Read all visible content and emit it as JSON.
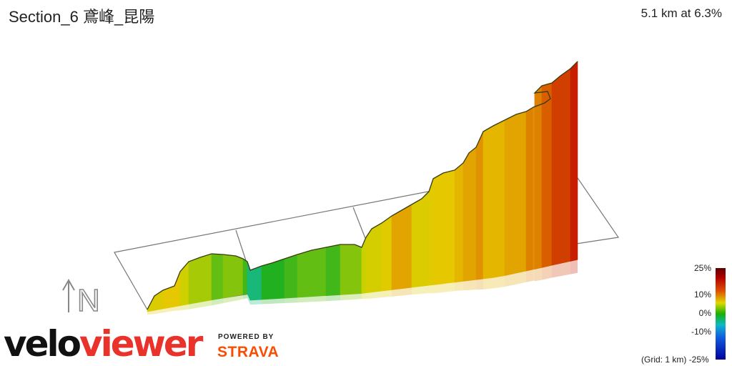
{
  "header": {
    "title": "Section_6 鳶峰_昆陽",
    "summary": "5.1 km at 6.3%"
  },
  "compass": {
    "label": "N"
  },
  "legend": {
    "ticks": [
      "25%",
      "10%",
      "0%",
      "-10%",
      "-25%"
    ],
    "colors": [
      "#8b0000",
      "#d03000",
      "#e8e000",
      "#20b020",
      "#10c0d0",
      "#1030c0",
      "#000080"
    ],
    "grid_note": "(Grid: 1 km)"
  },
  "branding": {
    "logo_part1": "velo",
    "logo_part2": "viewer",
    "powered_by": "POWERED BY",
    "strava": "STRAVA"
  },
  "chart_data": {
    "type": "area",
    "title": "Section_6 鳶峰_昆陽",
    "distance_km": 5.1,
    "avg_gradient_pct": 6.3,
    "grid": true,
    "gradient_scale": [
      -25,
      25
    ],
    "segments": [
      {
        "gradient_pct": 8
      },
      {
        "gradient_pct": 10
      },
      {
        "gradient_pct": 6
      },
      {
        "gradient_pct": 4
      },
      {
        "gradient_pct": 2
      },
      {
        "gradient_pct": 3
      },
      {
        "gradient_pct": 1
      },
      {
        "gradient_pct": -1
      },
      {
        "gradient_pct": 0
      },
      {
        "gradient_pct": 1
      },
      {
        "gradient_pct": 2
      },
      {
        "gradient_pct": 1
      },
      {
        "gradient_pct": 3
      },
      {
        "gradient_pct": 5
      },
      {
        "gradient_pct": 7
      },
      {
        "gradient_pct": 9
      },
      {
        "gradient_pct": 12
      },
      {
        "gradient_pct": 8
      },
      {
        "gradient_pct": 9
      },
      {
        "gradient_pct": 10
      },
      {
        "gradient_pct": 11
      },
      {
        "gradient_pct": 12
      },
      {
        "gradient_pct": 13
      },
      {
        "gradient_pct": 11
      },
      {
        "gradient_pct": 12
      },
      {
        "gradient_pct": 14
      },
      {
        "gradient_pct": 13
      },
      {
        "gradient_pct": 15
      },
      {
        "gradient_pct": 14
      },
      {
        "gradient_pct": 16
      },
      {
        "gradient_pct": 18
      },
      {
        "gradient_pct": 20
      }
    ]
  }
}
